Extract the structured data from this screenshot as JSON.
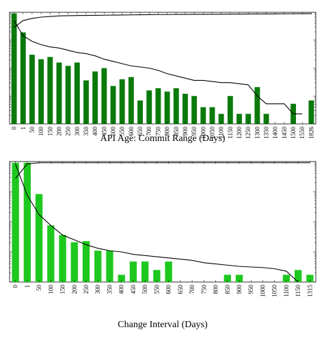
{
  "chart_data": [
    {
      "type": "bar",
      "xlabel": "API Age: Commit Range (Days)",
      "categories": [
        "0",
        "1",
        "50",
        "100",
        "150",
        "200",
        "250",
        "300",
        "350",
        "400",
        "450",
        "500",
        "550",
        "600",
        "650",
        "700",
        "750",
        "800",
        "850",
        "900",
        "950",
        "1000",
        "1050",
        "1100",
        "1150",
        "1200",
        "1250",
        "1300",
        "1350",
        "1400",
        "1450",
        "1500",
        "1550",
        "1826"
      ],
      "values": [
        99,
        82,
        62,
        58,
        60,
        55,
        52,
        55,
        39,
        47,
        50,
        34,
        40,
        42,
        21,
        30,
        32,
        29,
        32,
        27,
        25,
        15,
        15,
        9,
        25,
        9,
        9,
        33,
        9,
        0,
        0,
        18,
        0,
        21
      ],
      "color": "#0b7a0b",
      "ylim": [
        0,
        100
      ],
      "series": [
        {
          "color": "#000000",
          "values": [
            86.5,
            92.6,
            94.5,
            95.7,
            96.3,
            96.8,
            97,
            97.1,
            97.2,
            97.3,
            97.4,
            97.5,
            97.6,
            97.7,
            97.8,
            97.9,
            98,
            98,
            98.1,
            98.1,
            98.2,
            98.2,
            98.3,
            98.3,
            98.4,
            98.4,
            98.5,
            98.5,
            98.6,
            98.6,
            98.7,
            98.7,
            98.8,
            98.8
          ]
        },
        {
          "color": "#000000",
          "values": [
            92.6,
            79,
            74,
            71,
            69,
            68,
            66,
            64,
            63,
            61,
            58,
            56,
            54,
            52,
            51,
            50,
            48,
            45,
            43,
            41,
            39,
            39,
            38,
            37,
            37,
            36,
            35,
            25,
            18,
            18,
            18,
            9,
            9,
            null
          ]
        }
      ]
    },
    {
      "type": "bar",
      "xlabel": "Change Interval (Days)",
      "categories": [
        "0",
        "1",
        "50",
        "100",
        "150",
        "200",
        "250",
        "300",
        "350",
        "400",
        "450",
        "500",
        "550",
        "600",
        "650",
        "700",
        "750",
        "800",
        "850",
        "900",
        "950",
        "1000",
        "1050",
        "1100",
        "1150",
        "1315"
      ],
      "values": [
        99,
        99,
        73,
        47,
        39,
        33,
        34,
        26,
        26,
        6,
        17,
        17,
        10,
        17,
        0,
        0,
        0,
        0,
        6,
        6,
        0,
        0,
        0,
        6,
        10,
        6
      ],
      "color": "#1ec81e",
      "ylim": [
        0,
        100
      ],
      "series": [
        {
          "color": "#000000",
          "values": [
            86,
            98,
            99,
            99,
            99,
            99,
            99,
            99,
            99,
            99,
            99,
            99,
            99,
            99,
            99,
            99,
            99,
            99,
            99,
            99,
            99,
            99,
            99,
            99,
            99,
            99
          ]
        },
        {
          "color": "#000000",
          "values": [
            98,
            72,
            56,
            47,
            39,
            35,
            31,
            28,
            26,
            25,
            23,
            22,
            21,
            20,
            19,
            18,
            16,
            15,
            14,
            13,
            12.5,
            12,
            11,
            9,
            0,
            null
          ]
        }
      ]
    }
  ]
}
